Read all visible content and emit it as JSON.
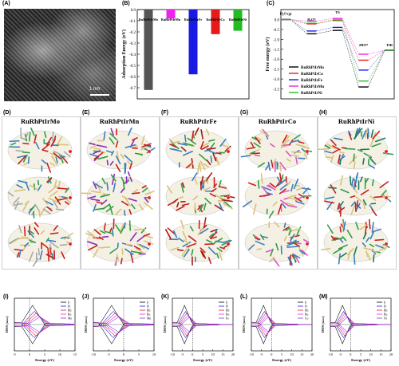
{
  "panels": {
    "a": "(A)",
    "b": "(B)",
    "c": "(C)",
    "d": "(D)",
    "e": "(E)",
    "f": "(F)",
    "g": "(G)",
    "h": "(H)",
    "i": "(I)",
    "j": "(J)",
    "k": "(K)",
    "l": "(L)",
    "m": "(M)"
  },
  "tem": {
    "scale_text": "1 nm"
  },
  "structures": {
    "titles": [
      "RuRhPtIrMo",
      "RuRhPtIrMn",
      "RuRhPtIrFe",
      "RuRhPtIrCo",
      "RuRhPtIrNi"
    ]
  },
  "dos": {
    "ylabel": "DOS (a.u.)",
    "xlabel": "Energy (eV)"
  },
  "chart_data": [
    {
      "type": "bar",
      "panel": "B",
      "categories": [
        "RuRhPtIrMo",
        "RuRhPtIrMn",
        "RuRhPtIrFe",
        "RuRhPtIrCo",
        "RuRhPtIrNi"
      ],
      "values": [
        -0.72,
        -0.08,
        -0.58,
        -0.22,
        -0.19
      ],
      "colors": [
        "#555555",
        "#ee22ee",
        "#1a1ae6",
        "#e61a1a",
        "#22bb22"
      ],
      "ylabel": "Adsorption Energy (eV)",
      "ylim": [
        -0.8,
        0.0
      ],
      "yticks": [
        "0.0",
        "-0.1",
        "-0.2",
        "-0.3",
        "-0.4",
        "-0.5",
        "-0.6",
        "-0.7"
      ]
    },
    {
      "type": "line",
      "panel": "C",
      "ylabel": "Free energy (eV)",
      "ylim": [
        -4.0,
        0.5
      ],
      "yticks": [
        "0.0",
        "-0.5",
        "-1.0",
        "-1.5",
        "-2.0",
        "-2.5",
        "-3.0",
        "-3.5"
      ],
      "step_labels": [
        "H₂O (g)",
        "H₂O*",
        "TS",
        "2HO*",
        "TIR"
      ],
      "series": [
        {
          "name": "RuRhPtIrMo",
          "color": "#000000",
          "values": [
            0.0,
            -0.72,
            -0.55,
            -3.4,
            -1.55
          ]
        },
        {
          "name": "RuRhPtIrCo",
          "color": "#e61a1a",
          "values": [
            0.0,
            -0.22,
            -0.05,
            -2.05,
            -1.55
          ]
        },
        {
          "name": "RuRhPtIrFe",
          "color": "#1a1ae6",
          "values": [
            0.0,
            -0.58,
            -0.4,
            -2.55,
            -1.55
          ]
        },
        {
          "name": "RuRhPtIrMn",
          "color": "#ee22ee",
          "values": [
            0.0,
            -0.08,
            0.05,
            -1.75,
            -1.55
          ]
        },
        {
          "name": "RuRhPtIrNi",
          "color": "#22bb22",
          "values": [
            0.0,
            -0.19,
            -0.02,
            -3.1,
            -1.55
          ]
        }
      ]
    },
    {
      "type": "line",
      "panel": "I",
      "xlim": [
        -5,
        15
      ],
      "xticks": [
        "-5",
        "0",
        "5",
        "10",
        "15"
      ],
      "legend": [
        "Ir",
        "Pt",
        "Rh",
        "Ru",
        "Mo"
      ]
    },
    {
      "type": "line",
      "panel": "J",
      "xlim": [
        -10,
        10
      ],
      "xticks": [
        "-10",
        "-5",
        "0",
        "5",
        "10"
      ],
      "legend": [
        "Ir",
        "Pt",
        "Rh",
        "Ru",
        "Mn"
      ]
    },
    {
      "type": "line",
      "panel": "K",
      "xlim": [
        -10,
        20
      ],
      "xticks": [
        "-10",
        "-5",
        "0",
        "5",
        "10",
        "15",
        "20"
      ],
      "legend": [
        "Ir",
        "Pt",
        "Rh",
        "Ru",
        "Fe"
      ]
    },
    {
      "type": "line",
      "panel": "L",
      "xlim": [
        -10,
        20
      ],
      "xticks": [
        "-10",
        "-5",
        "0",
        "5",
        "10",
        "15",
        "20"
      ],
      "legend": [
        "Ir",
        "Pt",
        "Rh",
        "Ru",
        "Co"
      ]
    },
    {
      "type": "line",
      "panel": "M",
      "xlim": [
        -10,
        20
      ],
      "xticks": [
        "-10",
        "-5",
        "0",
        "5",
        "10",
        "15",
        "20"
      ],
      "legend": [
        "Ir",
        "Pt",
        "Rh",
        "Ru",
        "Ni"
      ]
    }
  ]
}
